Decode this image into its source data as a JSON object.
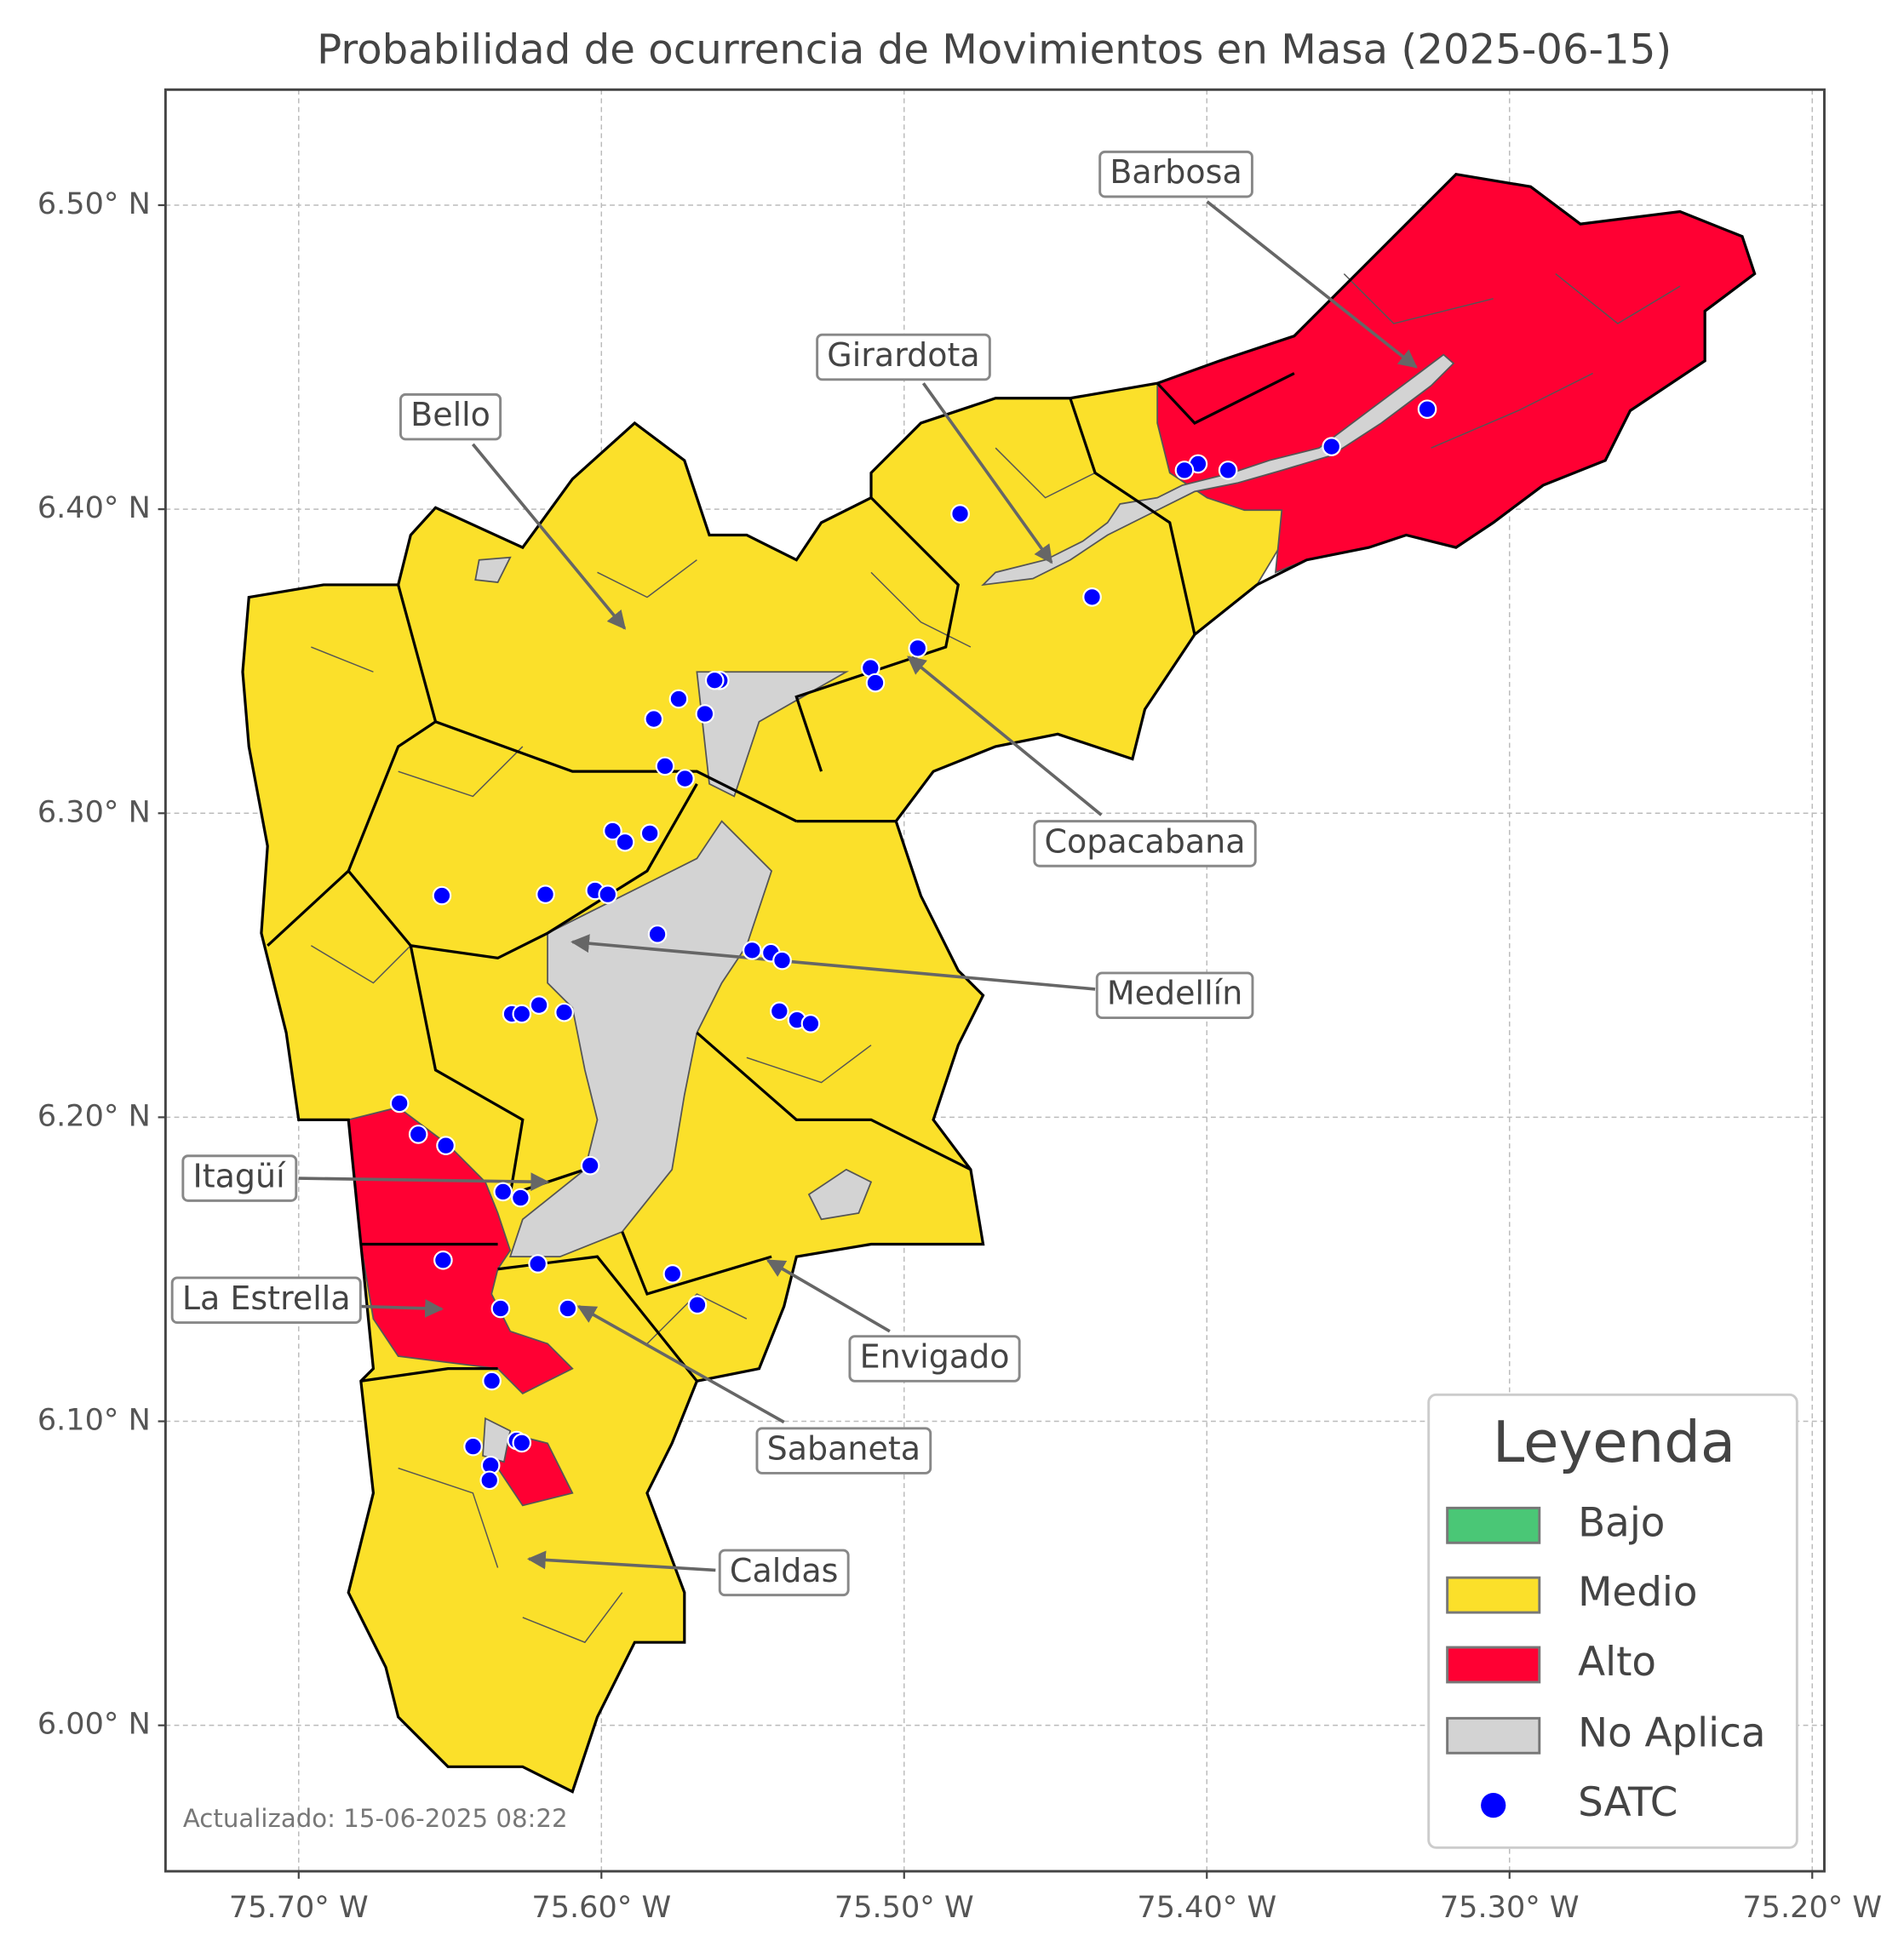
{
  "chart_data": {
    "type": "map",
    "title": "Probabilidad de ocurrencia de Movimientos en Masa (2025-06-15)",
    "xlim": [
      -75.744,
      -75.196
    ],
    "ylim": [
      5.952,
      6.538
    ],
    "xticks": [
      {
        "value": -75.7,
        "label": "75.70° W"
      },
      {
        "value": -75.6,
        "label": "75.60° W"
      },
      {
        "value": -75.5,
        "label": "75.50° W"
      },
      {
        "value": -75.4,
        "label": "75.40° W"
      },
      {
        "value": -75.3,
        "label": "75.30° W"
      },
      {
        "value": -75.2,
        "label": "75.20° W"
      }
    ],
    "yticks": [
      {
        "value": 6.0,
        "label": "6.00° N"
      },
      {
        "value": 6.1,
        "label": "6.10° N"
      },
      {
        "value": 6.2,
        "label": "6.20° N"
      },
      {
        "value": 6.3,
        "label": "6.30° N"
      },
      {
        "value": 6.4,
        "label": "6.40° N"
      },
      {
        "value": 6.5,
        "label": "6.50° N"
      }
    ],
    "grid": true,
    "legend": {
      "title": "Leyenda",
      "position": "lower right",
      "items": [
        {
          "name": "Bajo",
          "color": "#4ac776"
        },
        {
          "name": "Medio",
          "color": "#fbe02a"
        },
        {
          "name": "Alto",
          "color": "#ff0033"
        },
        {
          "name": "No Aplica",
          "color": "#d3d3d3"
        }
      ]
    },
    "points": {
      "name": "SATC",
      "color": "#0000ff",
      "x": [
        -75.3272,
        -75.3588,
        -75.393,
        -75.4029,
        -75.4074,
        -75.4815,
        -75.4379,
        -75.4955,
        -75.5111,
        -75.5095,
        -75.5609,
        -75.5626,
        -75.5745,
        -75.5658,
        -75.5827,
        -75.579,
        -75.5724,
        -75.5963,
        -75.5922,
        -75.584,
        -75.6527,
        -75.6185,
        -75.6021,
        -75.5979,
        -75.5815,
        -75.5502,
        -75.544,
        -75.5403,
        -75.6206,
        -75.6296,
        -75.6263,
        -75.6123,
        -75.5412,
        -75.5354,
        -75.5309,
        -75.6667,
        -75.6605,
        -75.6514,
        -75.6325,
        -75.6267,
        -75.6037,
        -75.6523,
        -75.621,
        -75.5765,
        -75.5683,
        -75.6333,
        -75.6111,
        -75.6362,
        -75.6424,
        -75.628,
        -75.6263,
        -75.6366,
        -75.637
      ],
      "y": [
        6.4329,
        6.4206,
        6.4128,
        6.4149,
        6.4128,
        6.3985,
        6.3711,
        6.3543,
        6.3478,
        6.3429,
        6.3437,
        6.3437,
        6.3376,
        6.3327,
        6.331,
        6.3155,
        6.3114,
        6.2942,
        6.2905,
        6.2934,
        6.2729,
        6.2733,
        6.2746,
        6.2733,
        6.2602,
        6.2549,
        6.2541,
        6.2516,
        6.2369,
        6.234,
        6.234,
        6.2345,
        6.2349,
        6.232,
        6.2308,
        6.2046,
        6.1944,
        6.1907,
        6.1755,
        6.1735,
        6.1841,
        6.153,
        6.1518,
        6.1485,
        6.1383,
        6.1371,
        6.1371,
        6.1133,
        6.0917,
        6.0937,
        6.0929,
        6.0855,
        6.0806
      ]
    },
    "annotations": [
      "Barbosa",
      "Girardota",
      "Bello",
      "Copacabana",
      "Medellín",
      "Itagüí",
      "La Estrella",
      "Envigado",
      "Sabaneta",
      "Caldas"
    ],
    "note": "Actualizado: 15-06-2025 08:22"
  }
}
